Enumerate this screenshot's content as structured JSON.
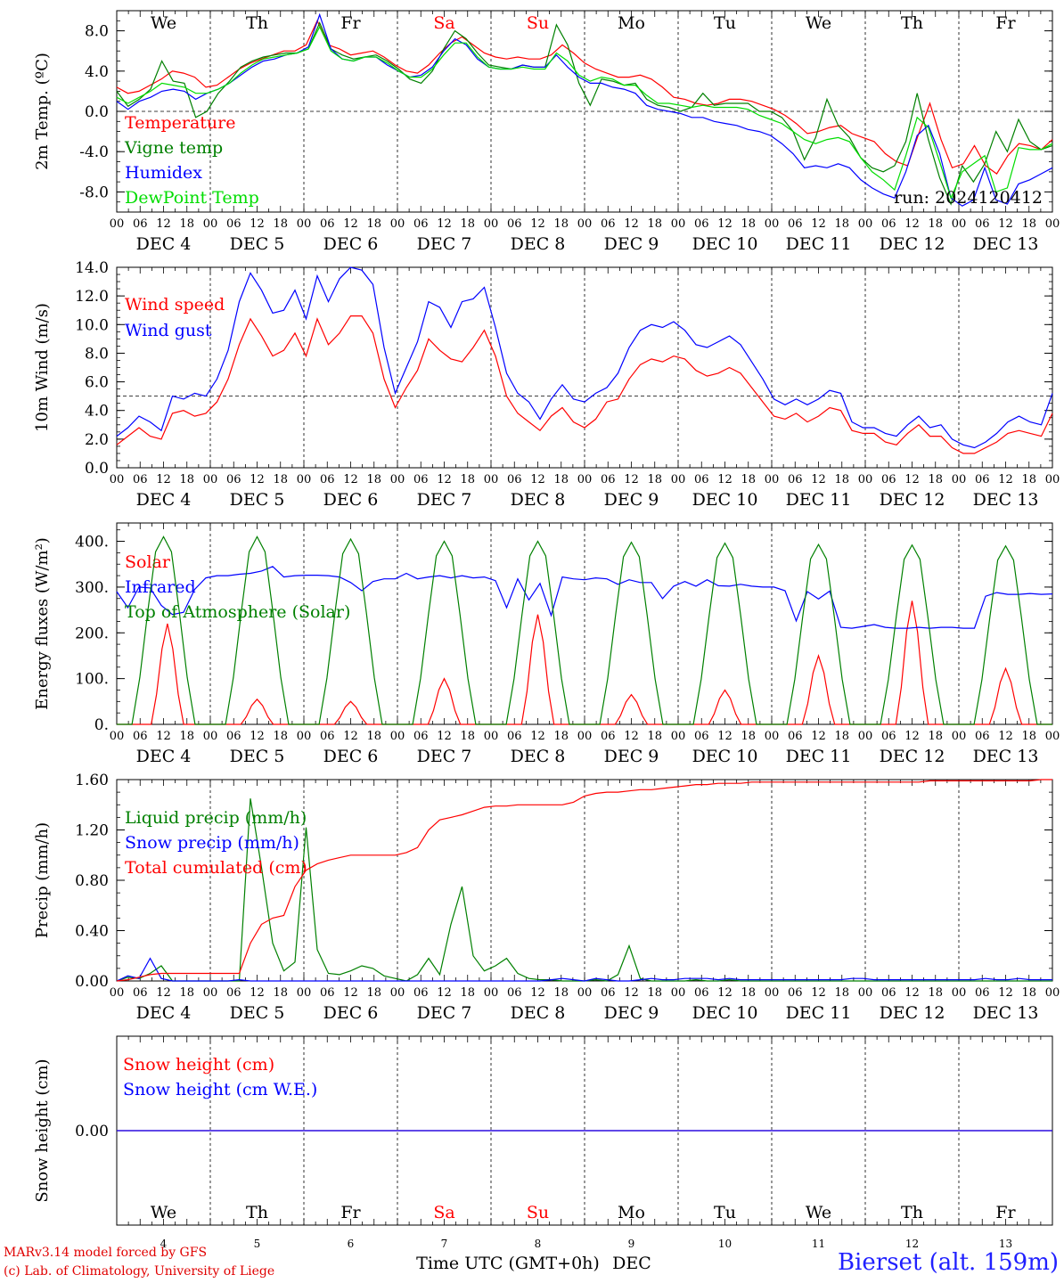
{
  "colors": {
    "red": "#ff0000",
    "green": "#008000",
    "blue": "#0000ff",
    "lightgreen": "#00dd00",
    "weekend": "#ff0000",
    "station": "#2020ff"
  },
  "days": {
    "names": [
      "We",
      "Th",
      "Fr",
      "Sa",
      "Su",
      "Mo",
      "Tu",
      "We",
      "Th",
      "Fr"
    ],
    "weekend": [
      false,
      false,
      false,
      true,
      true,
      false,
      false,
      false,
      false,
      false
    ],
    "dates": [
      "DEC  4",
      "DEC  5",
      "DEC  6",
      "DEC  7",
      "DEC  8",
      "DEC  9",
      "DEC 10",
      "DEC 11",
      "DEC 12",
      "DEC 13"
    ],
    "numbers": [
      "4",
      "5",
      "6",
      "7",
      "8",
      "9",
      "10",
      "11",
      "12",
      "13"
    ],
    "hour_labels": [
      "00",
      "06",
      "12",
      "18"
    ],
    "end_label": "00"
  },
  "chart_data": [
    {
      "type": "line",
      "ylabel": "2m Temp. (ºC)",
      "ylim": [
        -10,
        10
      ],
      "ticks": [
        8,
        4,
        0,
        -4,
        -8
      ],
      "tick_labels": [
        "8.0",
        "4.0",
        "0.0",
        "-4.0",
        "-8.0"
      ],
      "ref_line": 0,
      "run_label": "run: 2024120412",
      "series": [
        {
          "name": "Temperature",
          "color": "red",
          "values": [
            2.4,
            1.8,
            2,
            2.6,
            3.2,
            4,
            3.8,
            3.4,
            2.4,
            2.6,
            3.4,
            4.2,
            4.8,
            5.2,
            5.6,
            6,
            6,
            6.6,
            9,
            6.6,
            6.2,
            5.6,
            5.8,
            6,
            5.4,
            4.6,
            4,
            3.8,
            4.6,
            5.8,
            6.8,
            7.4,
            6.6,
            5.8,
            5.4,
            5.2,
            5.4,
            5.2,
            5.2,
            5.6,
            6.6,
            5.8,
            4.8,
            4.2,
            3.8,
            3.4,
            3.4,
            3.6,
            3.2,
            2.4,
            1.4,
            1.2,
            0.8,
            0.6,
            0.8,
            1.2,
            1.2,
            1,
            0.6,
            0.2,
            -0.4,
            -1.2,
            -2.2,
            -2,
            -1.6,
            -1.4,
            -2.2,
            -2.6,
            -3,
            -4.2,
            -5,
            -5.4,
            -2.2,
            0.8,
            -2.8,
            -5.6,
            -5.2,
            -3.4,
            -5.4,
            -6.2,
            -4.4,
            -3.2,
            -3.4,
            -3.8,
            -2.8
          ]
        },
        {
          "name": "Vigne temp",
          "color": "green",
          "values": [
            2,
            0.5,
            1.2,
            2.2,
            5,
            3,
            2.8,
            -0.6,
            0,
            1.8,
            3,
            4.4,
            5,
            5.4,
            5.6,
            5.8,
            5.8,
            6.2,
            8.8,
            6.2,
            5.6,
            5.2,
            5.4,
            5.6,
            5,
            4.2,
            3.2,
            2.8,
            4,
            6.2,
            8,
            7.2,
            5.8,
            4.6,
            4.4,
            4.2,
            4.6,
            4.4,
            4.4,
            8.6,
            6.6,
            2.8,
            0.6,
            3.2,
            3,
            2.6,
            2.8,
            1.2,
            0.6,
            0.4,
            0,
            0.4,
            1.8,
            0.6,
            0.8,
            0.8,
            0.8,
            0,
            0,
            -0.6,
            -2,
            -4.8,
            -2.6,
            1.2,
            -1.4,
            -2.6,
            -4.6,
            -5.6,
            -6,
            -5.4,
            -3,
            1.8,
            -2.8,
            -6.6,
            -9.2,
            -5.4,
            -7,
            -5.2,
            -2,
            -4,
            -0.8,
            -3,
            -3.8,
            -3.4
          ]
        },
        {
          "name": "Humidex",
          "color": "blue",
          "values": [
            1,
            0.2,
            1,
            1.4,
            2,
            2.2,
            2,
            1.2,
            1.8,
            2.2,
            2.8,
            3.6,
            4.4,
            5,
            5.2,
            5.6,
            5.8,
            6.4,
            9.6,
            6.2,
            5.2,
            5,
            5.4,
            5.4,
            4.6,
            4,
            3.4,
            3.6,
            4.4,
            6,
            7.2,
            6.6,
            5.2,
            4.4,
            4.2,
            4.2,
            4.6,
            4.4,
            4.4,
            5.6,
            4.4,
            3.4,
            2.8,
            2.8,
            2.4,
            2.2,
            1.8,
            0.6,
            0.2,
            0,
            -0.2,
            -0.6,
            -0.6,
            -1,
            -1.2,
            -1.4,
            -1.8,
            -2,
            -2.4,
            -3.2,
            -4.2,
            -5.6,
            -5.4,
            -5.6,
            -5.2,
            -5.6,
            -6.8,
            -7.6,
            -8.2,
            -8.6,
            -6,
            -2.4,
            -1.4,
            -4.2,
            -8.6,
            -9.4,
            -8.8,
            -5.6,
            -8.8,
            -9.2,
            -7.2,
            -6.8,
            -6.2,
            -5.6
          ]
        },
        {
          "name": "DewPoint Temp",
          "color": "lightgreen",
          "values": [
            1.4,
            0.8,
            1.4,
            2,
            2.8,
            2.6,
            2.4,
            1.8,
            1.8,
            2.2,
            2.8,
            3.8,
            4.6,
            5.2,
            5.4,
            5.6,
            5.8,
            6.2,
            8.4,
            6,
            5.2,
            5,
            5.4,
            5.4,
            4.8,
            4,
            3.4,
            3.4,
            4.2,
            5.6,
            6.8,
            6.8,
            5.4,
            4.4,
            4.2,
            4.2,
            4.4,
            4.2,
            4.2,
            5.8,
            5,
            3.6,
            3,
            3.4,
            3.2,
            2.6,
            2.6,
            1.6,
            0.8,
            0.8,
            0.6,
            0.4,
            0.6,
            0.4,
            0.4,
            0.4,
            0.2,
            -0.4,
            -0.8,
            -1.2,
            -2,
            -2.8,
            -3.2,
            -2.8,
            -2.6,
            -3,
            -4.6,
            -6,
            -6.8,
            -7.8,
            -4.4,
            -0.6,
            -1.6,
            -5,
            -8.6,
            -6,
            -5.2,
            -4.4,
            -8,
            -7.6,
            -3.6,
            -3.8,
            -3.8,
            -3.2
          ]
        }
      ]
    },
    {
      "type": "line",
      "ylabel": "10m Wind (m/s)",
      "ylim": [
        0,
        14
      ],
      "ticks": [
        14,
        12,
        10,
        8,
        6,
        4,
        2,
        0
      ],
      "tick_labels": [
        "14.0",
        "12.0",
        "10.0",
        "8.0",
        "6.0",
        "4.0",
        "2.0",
        "0.0"
      ],
      "ref_line": 5,
      "series": [
        {
          "name": "Wind speed",
          "color": "red",
          "values": [
            1.6,
            2.2,
            2.8,
            2.2,
            2,
            3.8,
            4,
            3.6,
            3.8,
            4.6,
            6.2,
            8.6,
            10.4,
            9.2,
            7.8,
            8.2,
            9.4,
            7.8,
            10.4,
            8.6,
            9.4,
            10.6,
            10.6,
            9.4,
            6.2,
            4.2,
            5.6,
            6.8,
            9,
            8.2,
            7.6,
            7.4,
            8.4,
            9.6,
            7.8,
            5,
            3.8,
            3.2,
            2.6,
            3.6,
            4.2,
            3.2,
            2.8,
            3.4,
            4.6,
            4.8,
            6.2,
            7.2,
            7.6,
            7.4,
            7.8,
            7.6,
            6.8,
            6.4,
            6.6,
            7,
            6.6,
            5.6,
            4.6,
            3.6,
            3.4,
            3.8,
            3.2,
            3.6,
            4.2,
            4,
            2.6,
            2.4,
            2.4,
            1.8,
            1.6,
            2.4,
            3,
            2.2,
            2.2,
            1.4,
            1,
            1,
            1.4,
            1.8,
            2.4,
            2.6,
            2.4,
            2.2,
            3.8
          ]
        },
        {
          "name": "Wind gust",
          "color": "blue",
          "values": [
            2.2,
            2.8,
            3.6,
            3.2,
            2.6,
            5,
            4.8,
            5.2,
            5,
            6.2,
            8.2,
            11.6,
            13.6,
            12.4,
            10.8,
            11,
            12.4,
            10.4,
            13.4,
            11.6,
            13.2,
            14,
            13.8,
            12.8,
            8.4,
            5.2,
            7,
            8.8,
            11.6,
            11.2,
            9.8,
            11.6,
            11.8,
            12.6,
            9.8,
            6.6,
            5.2,
            4.6,
            3.4,
            4.8,
            5.8,
            4.8,
            4.6,
            5.2,
            5.6,
            6.6,
            8.4,
            9.6,
            10,
            9.8,
            10.2,
            9.6,
            8.6,
            8.4,
            8.8,
            9.2,
            8.6,
            7.4,
            6.2,
            4.8,
            4.4,
            4.8,
            4.4,
            4.8,
            5.4,
            5.2,
            3.2,
            2.8,
            2.8,
            2.4,
            2.2,
            3,
            3.6,
            2.8,
            3,
            2,
            1.6,
            1.4,
            1.8,
            2.4,
            3.2,
            3.6,
            3.2,
            3,
            5.2
          ]
        }
      ]
    },
    {
      "type": "line",
      "ylabel": "Energy fluxes (W/m²)",
      "ylim": [
        0,
        440
      ],
      "ticks": [
        400,
        300,
        200,
        100,
        0
      ],
      "tick_labels": [
        "400.",
        "300.",
        "200.",
        "100.",
        "0."
      ],
      "series": [
        {
          "name": "Solar",
          "color": "red",
          "peaks": [
            220,
            55,
            50,
            100,
            240,
            65,
            75,
            150,
            270,
            122
          ],
          "peak_offsets_h": [
            13,
            12,
            12,
            12,
            12,
            12,
            12,
            12,
            12,
            12
          ]
        },
        {
          "name": "Infrared",
          "color": "blue",
          "values": [
            290,
            255,
            300,
            298,
            260,
            240,
            245,
            295,
            320,
            325,
            325,
            328,
            330,
            335,
            345,
            322,
            325,
            326,
            326,
            325,
            322,
            310,
            292,
            312,
            318,
            318,
            330,
            318,
            322,
            325,
            320,
            325,
            320,
            322,
            314,
            255,
            318,
            272,
            308,
            238,
            322,
            318,
            316,
            320,
            318,
            306,
            316,
            310,
            310,
            275,
            302,
            312,
            302,
            316,
            303,
            302,
            306,
            302,
            300,
            300,
            292,
            226,
            290,
            274,
            291,
            212,
            210,
            214,
            218,
            212,
            210,
            210,
            212,
            210,
            212,
            212,
            210,
            210,
            280,
            288,
            284,
            284,
            286,
            284,
            285
          ]
        },
        {
          "name": "Top of Atmosphere (Solar)",
          "color": "green",
          "peaks": [
            410,
            410,
            405,
            400,
            400,
            398,
            396,
            393,
            392,
            390
          ],
          "peak_offsets_h": [
            12,
            12,
            12,
            12,
            12,
            12,
            12,
            12,
            12,
            12
          ]
        }
      ]
    },
    {
      "type": "line",
      "ylabel": "Precip (mm/h)",
      "ylim": [
        0,
        1.6
      ],
      "ticks": [
        1.6,
        1.2,
        0.8,
        0.4,
        0
      ],
      "tick_labels": [
        "1.60",
        "1.20",
        "0.80",
        "0.40",
        "0.00"
      ],
      "series": [
        {
          "name": "Liquid precip (mm/h)",
          "color": "green",
          "values": [
            0,
            0.03,
            0.02,
            0.06,
            0.12,
            0,
            0,
            0,
            0,
            0,
            0,
            0,
            1.45,
            0.9,
            0.3,
            0.08,
            0.15,
            1.22,
            0.25,
            0.06,
            0.05,
            0.08,
            0.12,
            0.1,
            0.04,
            0.02,
            0,
            0.05,
            0.18,
            0.05,
            0.45,
            0.75,
            0.2,
            0.08,
            0.12,
            0.18,
            0.06,
            0.02,
            0.01,
            0.01,
            0,
            0,
            0,
            0.01,
            0,
            0.05,
            0.28,
            0.02,
            0,
            0,
            0,
            0,
            0.01,
            0,
            0,
            0.01,
            0,
            0,
            0,
            0,
            0,
            0,
            0,
            0,
            0,
            0,
            0,
            0,
            0,
            0,
            0,
            0,
            0,
            0,
            0,
            0,
            0,
            0,
            0,
            0,
            0,
            0,
            0,
            0,
            0
          ]
        },
        {
          "name": "Snow precip (mm/h)",
          "color": "blue",
          "values": [
            0,
            0.04,
            0.02,
            0.18,
            0.02,
            0,
            0,
            0,
            0,
            0,
            0,
            0.01,
            0,
            0,
            0,
            0,
            0,
            0,
            0,
            0,
            0,
            0,
            0,
            0,
            0,
            0,
            0,
            0,
            0,
            0,
            0,
            0,
            0,
            0,
            0,
            0,
            0,
            0,
            0,
            0.01,
            0.02,
            0.01,
            0,
            0.02,
            0.01,
            0,
            0,
            0.01,
            0.02,
            0.01,
            0.01,
            0.02,
            0.02,
            0.02,
            0.01,
            0.02,
            0.01,
            0.01,
            0.01,
            0.01,
            0.01,
            0.01,
            0.01,
            0.01,
            0.01,
            0.01,
            0.02,
            0.02,
            0.01,
            0.01,
            0.01,
            0.01,
            0.01,
            0.01,
            0.01,
            0.01,
            0.01,
            0.01,
            0.02,
            0.01,
            0.01,
            0.02,
            0.01,
            0.01,
            0.01
          ]
        },
        {
          "name": "Total cumulated (cm)",
          "color": "red",
          "values": [
            0,
            0.01,
            0.03,
            0.05,
            0.06,
            0.06,
            0.06,
            0.06,
            0.06,
            0.06,
            0.06,
            0.06,
            0.3,
            0.45,
            0.5,
            0.52,
            0.75,
            0.88,
            0.93,
            0.96,
            0.98,
            1,
            1,
            1,
            1,
            1,
            1.02,
            1.06,
            1.2,
            1.28,
            1.3,
            1.32,
            1.35,
            1.38,
            1.39,
            1.39,
            1.4,
            1.4,
            1.4,
            1.4,
            1.4,
            1.42,
            1.47,
            1.49,
            1.5,
            1.5,
            1.51,
            1.52,
            1.52,
            1.53,
            1.54,
            1.55,
            1.56,
            1.56,
            1.57,
            1.57,
            1.57,
            1.58,
            1.58,
            1.58,
            1.58,
            1.58,
            1.58,
            1.58,
            1.58,
            1.58,
            1.58,
            1.58,
            1.58,
            1.58,
            1.58,
            1.58,
            1.58,
            1.59,
            1.59,
            1.59,
            1.59,
            1.59,
            1.59,
            1.59,
            1.59,
            1.59,
            1.59,
            1.6,
            1.6
          ]
        }
      ]
    },
    {
      "type": "line",
      "ylabel": "Snow height (cm)",
      "ylim": [
        -1,
        1
      ],
      "ticks": [
        0
      ],
      "tick_labels": [
        "0.00"
      ],
      "series": [
        {
          "name": "Snow height (cm)",
          "color": "red",
          "values": [
            0,
            0
          ]
        },
        {
          "name": "Snow height (cm W.E.)",
          "color": "blue",
          "values": [
            0,
            0
          ]
        }
      ]
    }
  ],
  "footer": {
    "xlabel": "Time UTC (GMT+0h)",
    "month": "DEC",
    "credit_line1": "MARv3.14 model forced by GFS",
    "credit_line2": "(c) Lab. of Climatology, University of Liege",
    "station": "Bierset (alt. 159m)"
  }
}
